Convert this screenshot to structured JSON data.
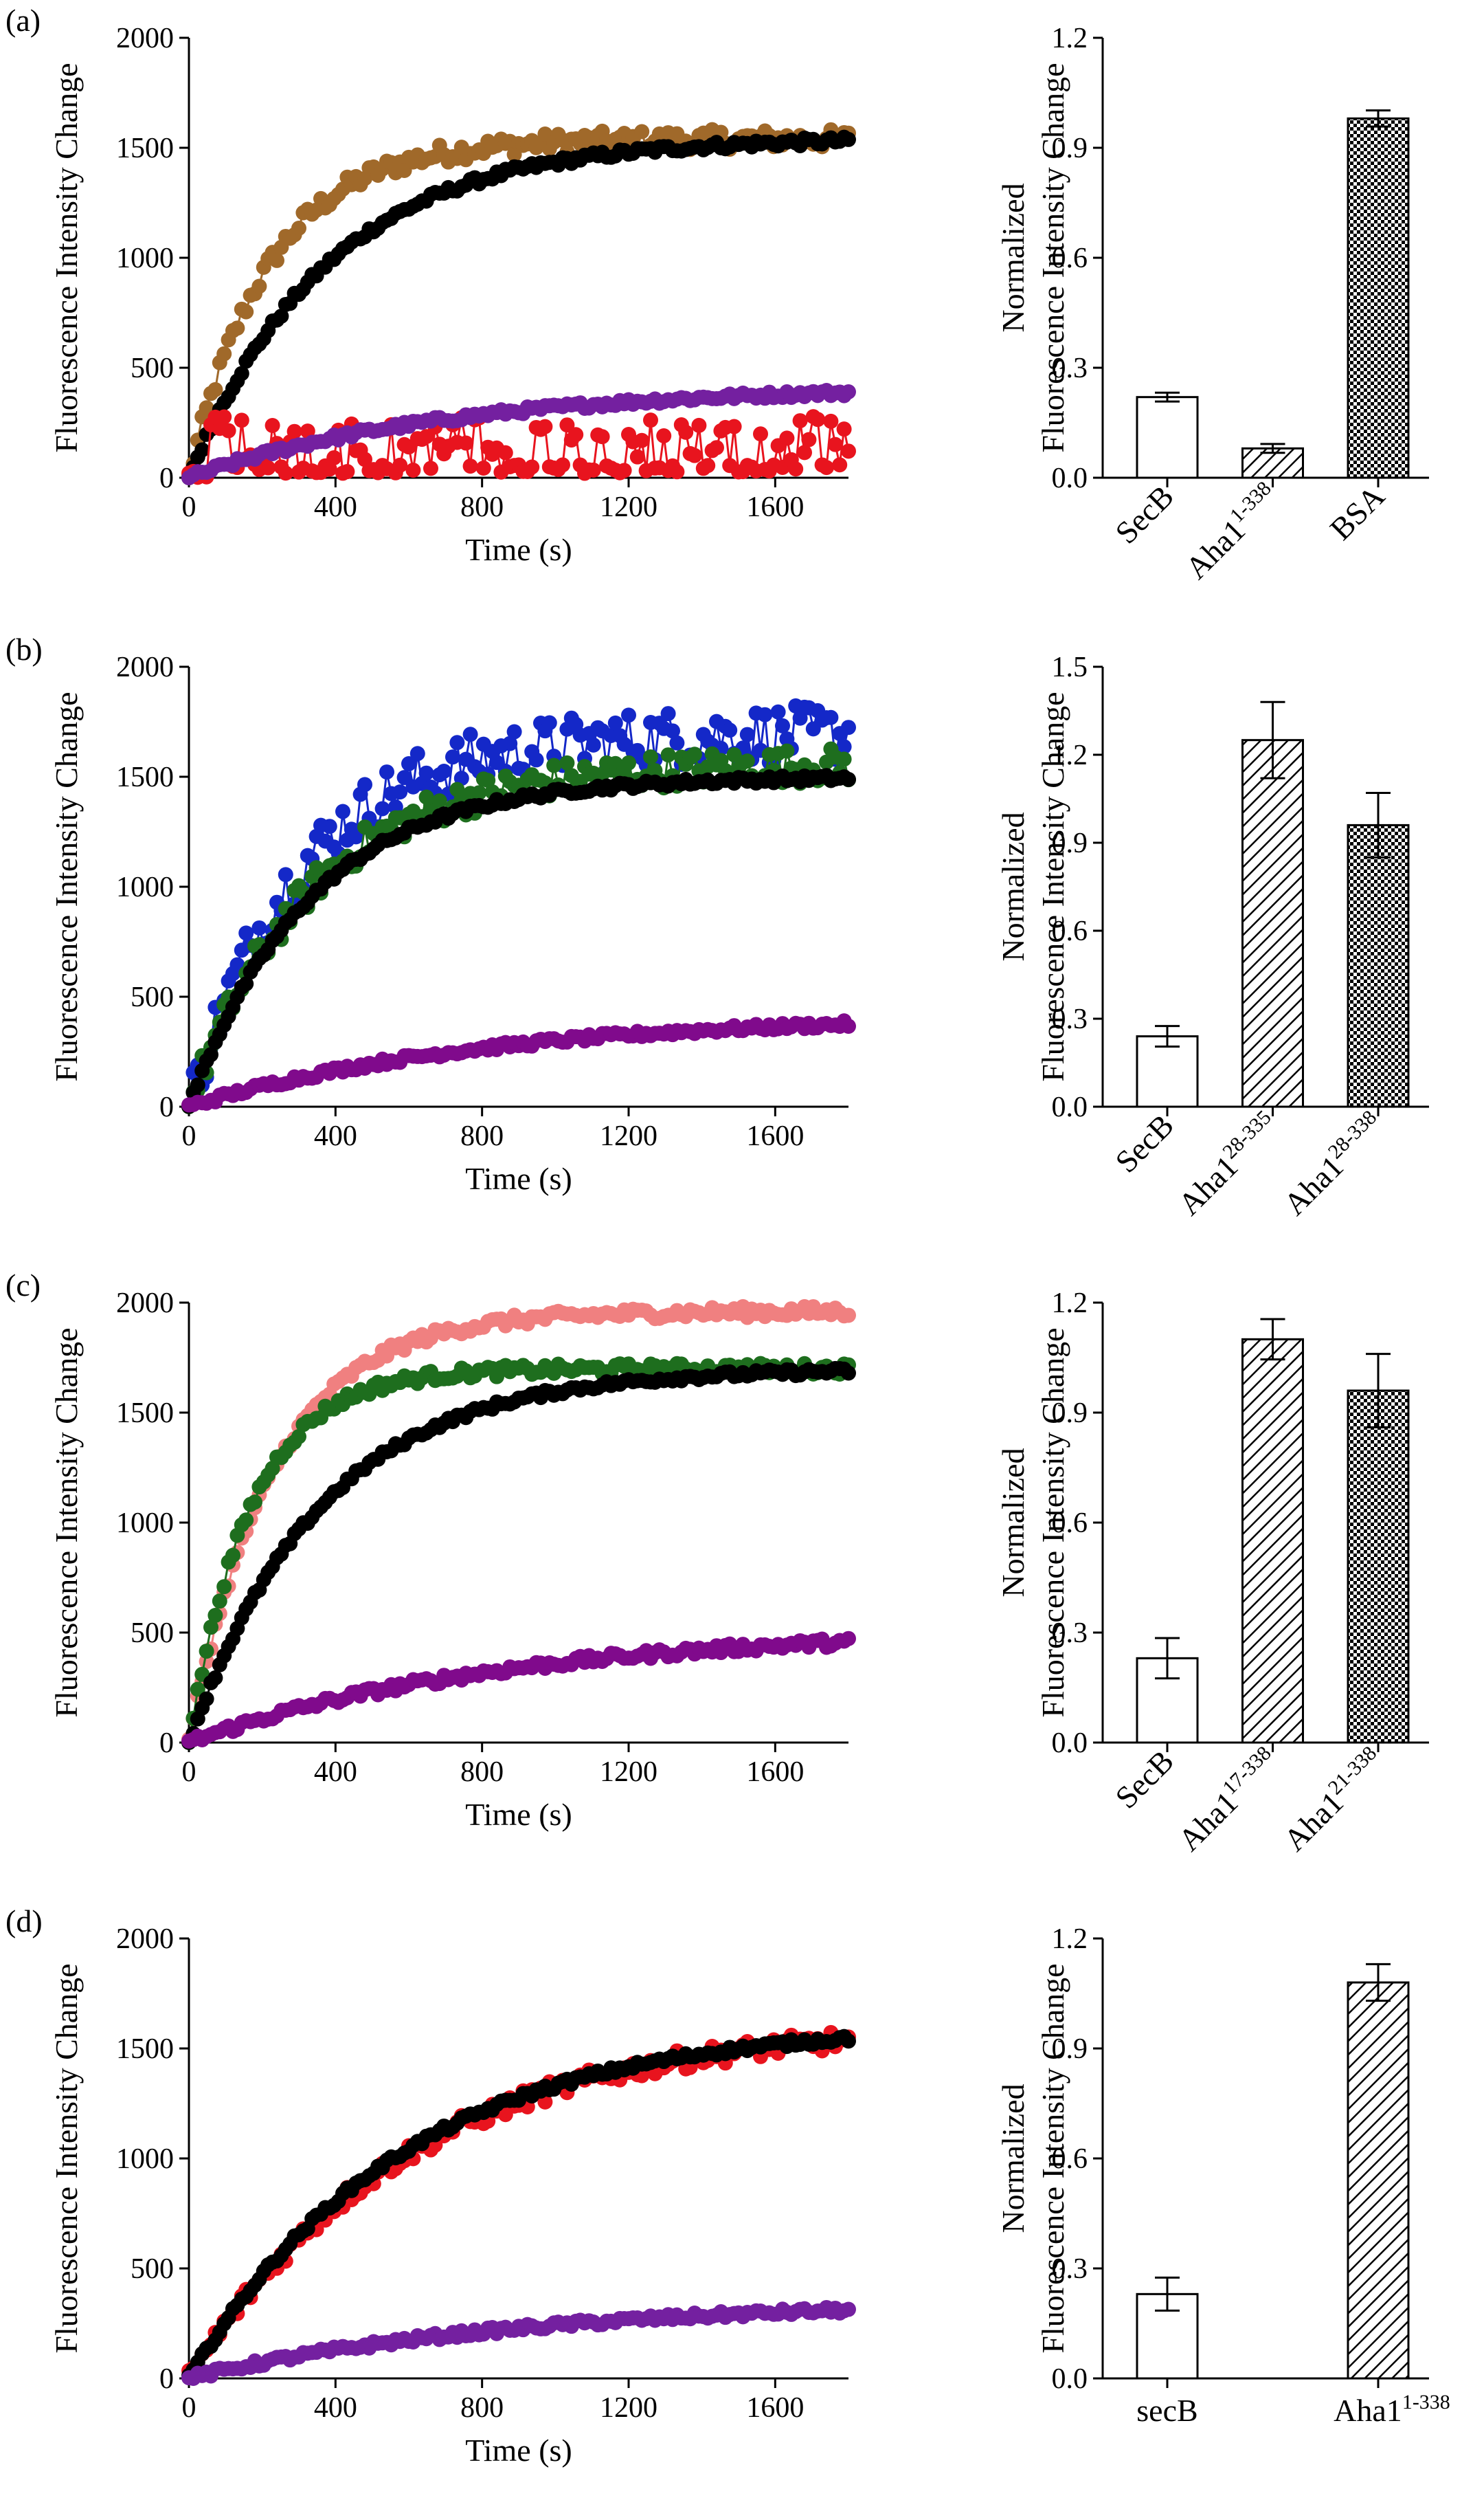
{
  "figure": {
    "panels": [
      {
        "label": "(a)",
        "line": {
          "type": "scatter",
          "xlabel": "Time (s)",
          "ylabel": "Fluorescence Intensity Change",
          "xlim": [
            0,
            1800
          ],
          "ylim": [
            0,
            2000
          ],
          "xticks": [
            0,
            400,
            800,
            1200,
            1600
          ],
          "yticks": [
            0,
            500,
            1000,
            1500,
            2000
          ],
          "series": [
            {
              "color": "#a0692a",
              "style": "plateau",
              "final": 1540,
              "tau": 220,
              "noise": 45,
              "step": 12
            },
            {
              "color": "#000000",
              "style": "plateau",
              "final": 1545,
              "tau": 380,
              "noise": 18,
              "step": 12
            },
            {
              "color": "#e8141e",
              "style": "noisy_low",
              "final": 120,
              "tau": 0,
              "noise": 130,
              "step": 12
            },
            {
              "color": "#7420a0",
              "style": "plateau",
              "final": 420,
              "tau": 700,
              "noise": 15,
              "step": 12
            }
          ]
        },
        "bar": {
          "type": "bar",
          "ylabel_line1": "Normalized",
          "ylabel_line2": "Fluorescence Intensity Change",
          "ylim": [
            0,
            1.2
          ],
          "yticks": [
            "0.0",
            "0.3",
            "0.6",
            "0.9",
            "1.2"
          ],
          "rotated": true,
          "categories": [
            {
              "base": "SecB",
              "sup": "",
              "value": 0.22,
              "err": 0.012,
              "pattern": "none"
            },
            {
              "base": "Aha1",
              "sup": "1-338",
              "value": 0.08,
              "err": 0.012,
              "pattern": "hatch"
            },
            {
              "base": "BSA",
              "sup": "",
              "value": 0.98,
              "err": 0.022,
              "pattern": "check"
            }
          ]
        }
      },
      {
        "label": "(b)",
        "line": {
          "type": "scatter",
          "xlabel": "Time (s)",
          "ylabel": "Fluorescence Intensity Change",
          "xlim": [
            0,
            1800
          ],
          "ylim": [
            0,
            2000
          ],
          "xticks": [
            0,
            400,
            800,
            1200,
            1600
          ],
          "yticks": [
            0,
            500,
            1000,
            1500,
            2000
          ],
          "series": [
            {
              "color": "#1428c8",
              "style": "plateau",
              "final": 1700,
              "tau": 300,
              "noise": 130,
              "step": 12
            },
            {
              "color": "#1e6e1e",
              "style": "plateau",
              "final": 1560,
              "tau": 330,
              "noise": 80,
              "step": 12
            },
            {
              "color": "#000000",
              "style": "plateau",
              "final": 1500,
              "tau": 330,
              "noise": 15,
              "step": 12
            },
            {
              "color": "#800a8c",
              "style": "plateau",
              "final": 420,
              "tau": 800,
              "noise": 15,
              "step": 12
            }
          ]
        },
        "bar": {
          "type": "bar",
          "ylabel_line1": "Normalized",
          "ylabel_line2": "Fluorescence Intensity Change",
          "ylim": [
            0,
            1.5
          ],
          "yticks": [
            "0.0",
            "0.3",
            "0.6",
            "0.9",
            "1.2",
            "1.5"
          ],
          "rotated": true,
          "categories": [
            {
              "base": "SecB",
              "sup": "",
              "value": 0.24,
              "err": 0.035,
              "pattern": "none"
            },
            {
              "base": "Aha1",
              "sup": "28-335",
              "value": 1.25,
              "err": 0.13,
              "pattern": "hatch"
            },
            {
              "base": "Aha1",
              "sup": "28-338",
              "value": 0.96,
              "err": 0.11,
              "pattern": "check"
            }
          ]
        }
      },
      {
        "label": "(c)",
        "line": {
          "type": "scatter",
          "xlabel": "Time (s)",
          "ylabel": "Fluorescence Intensity Change",
          "xlim": [
            0,
            1800
          ],
          "ylim": [
            0,
            2000
          ],
          "xticks": [
            0,
            400,
            800,
            1200,
            1600
          ],
          "yticks": [
            0,
            500,
            1000,
            1500,
            2000
          ],
          "series": [
            {
              "color": "#f08080",
              "style": "plateau",
              "final": 1960,
              "tau": 230,
              "noise": 25,
              "step": 12
            },
            {
              "color": "#1e6e1e",
              "style": "plateau",
              "final": 1700,
              "tau": 170,
              "noise": 25,
              "step": 12
            },
            {
              "color": "#000000",
              "style": "plateau",
              "final": 1700,
              "tau": 360,
              "noise": 15,
              "step": 12
            },
            {
              "color": "#800a8c",
              "style": "plateau",
              "final": 520,
              "tau": 850,
              "noise": 20,
              "step": 12
            }
          ]
        },
        "bar": {
          "type": "bar",
          "ylabel_line1": "Normalized",
          "ylabel_line2": "Fluorescence Intensity Change",
          "ylim": [
            0,
            1.2
          ],
          "yticks": [
            "0.0",
            "0.3",
            "0.6",
            "0.9",
            "1.2"
          ],
          "rotated": true,
          "categories": [
            {
              "base": "SecB",
              "sup": "",
              "value": 0.23,
              "err": 0.055,
              "pattern": "none"
            },
            {
              "base": "Aha1",
              "sup": "17-338",
              "value": 1.1,
              "err": 0.055,
              "pattern": "hatch"
            },
            {
              "base": "Aha1",
              "sup": "21-338",
              "value": 0.96,
              "err": 0.1,
              "pattern": "check"
            }
          ]
        }
      },
      {
        "label": "(d)",
        "line": {
          "type": "scatter",
          "xlabel": "Time (s)",
          "ylabel": "Fluorescence Intensity Change",
          "xlim": [
            0,
            1800
          ],
          "ylim": [
            0,
            2000
          ],
          "xticks": [
            0,
            400,
            800,
            1200,
            1600
          ],
          "yticks": [
            0,
            500,
            1000,
            1500,
            2000
          ],
          "series": [
            {
              "color": "#e8141e",
              "style": "plateau",
              "final": 1620,
              "tau": 600,
              "noise": 45,
              "step": 12
            },
            {
              "color": "#000000",
              "style": "plateau",
              "final": 1620,
              "tau": 580,
              "noise": 15,
              "step": 12
            },
            {
              "color": "#7420a0",
              "style": "plateau",
              "final": 360,
              "tau": 900,
              "noise": 15,
              "step": 12
            }
          ]
        },
        "bar": {
          "type": "bar",
          "ylabel_line1": "Normalized",
          "ylabel_line2": "Fluorescence Intensity Change",
          "ylim": [
            0,
            1.2
          ],
          "yticks": [
            "0.0",
            "0.3",
            "0.6",
            "0.9",
            "1.2"
          ],
          "rotated": false,
          "categories": [
            {
              "base": "secB",
              "sup": "",
              "value": 0.23,
              "err": 0.045,
              "pattern": "none"
            },
            {
              "base": "Aha1",
              "sup": "1-338",
              "value": 1.08,
              "err": 0.05,
              "pattern": "hatch"
            }
          ]
        }
      }
    ]
  },
  "chart_data": [
    {
      "panel": "(a)",
      "type": "scatter",
      "xlabel": "Time (s)",
      "ylabel": "Fluorescence Intensity Change",
      "xlim": [
        0,
        1800
      ],
      "ylim": [
        0,
        2000
      ],
      "series_plateaus": [
        1540,
        1545,
        120,
        420
      ]
    },
    {
      "panel": "(a)",
      "type": "bar",
      "categories": [
        "SecB",
        "Aha1 1-338",
        "BSA"
      ],
      "values": [
        0.22,
        0.08,
        0.98
      ],
      "errors": [
        0.012,
        0.012,
        0.022
      ],
      "ylabel": "Normalized Fluorescence Intensity Change",
      "ylim": [
        0,
        1.2
      ]
    },
    {
      "panel": "(b)",
      "type": "scatter",
      "xlabel": "Time (s)",
      "ylabel": "Fluorescence Intensity Change",
      "xlim": [
        0,
        1800
      ],
      "ylim": [
        0,
        2000
      ],
      "series_plateaus": [
        1700,
        1560,
        1500,
        420
      ]
    },
    {
      "panel": "(b)",
      "type": "bar",
      "categories": [
        "SecB",
        "Aha1 28-335",
        "Aha1 28-338"
      ],
      "values": [
        0.24,
        1.25,
        0.96
      ],
      "errors": [
        0.035,
        0.13,
        0.11
      ],
      "ylabel": "Normalized Fluorescence Intensity Change",
      "ylim": [
        0,
        1.5
      ]
    },
    {
      "panel": "(c)",
      "type": "scatter",
      "xlabel": "Time (s)",
      "ylabel": "Fluorescence Intensity Change",
      "xlim": [
        0,
        1800
      ],
      "ylim": [
        0,
        2000
      ],
      "series_plateaus": [
        1960,
        1700,
        1700,
        520
      ]
    },
    {
      "panel": "(c)",
      "type": "bar",
      "categories": [
        "SecB",
        "Aha1 17-338",
        "Aha1 21-338"
      ],
      "values": [
        0.23,
        1.1,
        0.96
      ],
      "errors": [
        0.055,
        0.055,
        0.1
      ],
      "ylabel": "Normalized Fluorescence Intensity Change",
      "ylim": [
        0,
        1.2
      ]
    },
    {
      "panel": "(d)",
      "type": "scatter",
      "xlabel": "Time (s)",
      "ylabel": "Fluorescence Intensity Change",
      "xlim": [
        0,
        1800
      ],
      "ylim": [
        0,
        2000
      ],
      "series_plateaus": [
        1620,
        1620,
        360
      ]
    },
    {
      "panel": "(d)",
      "type": "bar",
      "categories": [
        "secB",
        "Aha1 1-338"
      ],
      "values": [
        0.23,
        1.08
      ],
      "errors": [
        0.045,
        0.05
      ],
      "ylabel": "Normalized Fluorescence Intensity Change",
      "ylim": [
        0,
        1.2
      ]
    }
  ]
}
